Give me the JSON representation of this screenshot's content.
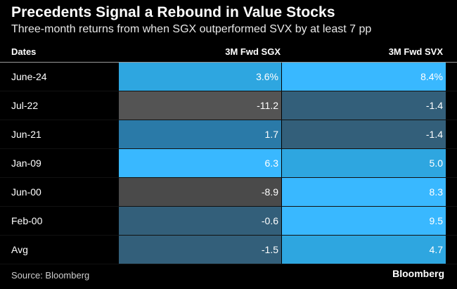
{
  "title": "Precedents Signal a Rebound in Value Stocks",
  "subtitle": "Three-month returns from when SGX outperformed SVX by at least 7 pp",
  "source": "Source: Bloomberg",
  "brand": "Bloomberg",
  "colors": {
    "background": "#000000",
    "strong_positive": "#39b8ff",
    "mid_positive": "#2ea6e0",
    "low_positive": "#2a7aa8",
    "slight_negative": "#335f7a",
    "negative": "#4a4a4a",
    "strong_negative": "#545454"
  },
  "chart_data": {
    "type": "table",
    "columns": [
      "Dates",
      "3M Fwd SGX",
      "3M Fwd SVX"
    ],
    "rows": [
      {
        "date": "June-24",
        "sgx": "3.6%",
        "svx": "8.4%",
        "sgx_value": 3.6,
        "svx_value": 8.4
      },
      {
        "date": "Jul-22",
        "sgx": "-11.2",
        "svx": "-1.4",
        "sgx_value": -11.2,
        "svx_value": -1.4
      },
      {
        "date": "Jun-21",
        "sgx": "1.7",
        "svx": "-1.4",
        "sgx_value": 1.7,
        "svx_value": -1.4
      },
      {
        "date": "Jan-09",
        "sgx": "6.3",
        "svx": "5.0",
        "sgx_value": 6.3,
        "svx_value": 5.0
      },
      {
        "date": "Jun-00",
        "sgx": "-8.9",
        "svx": "8.3",
        "sgx_value": -8.9,
        "svx_value": 8.3
      },
      {
        "date": "Feb-00",
        "sgx": "-0.6",
        "svx": "9.5",
        "sgx_value": -0.6,
        "svx_value": 9.5
      },
      {
        "date": "Avg",
        "sgx": "-1.5",
        "svx": "4.7",
        "sgx_value": -1.5,
        "svx_value": 4.7
      }
    ]
  }
}
